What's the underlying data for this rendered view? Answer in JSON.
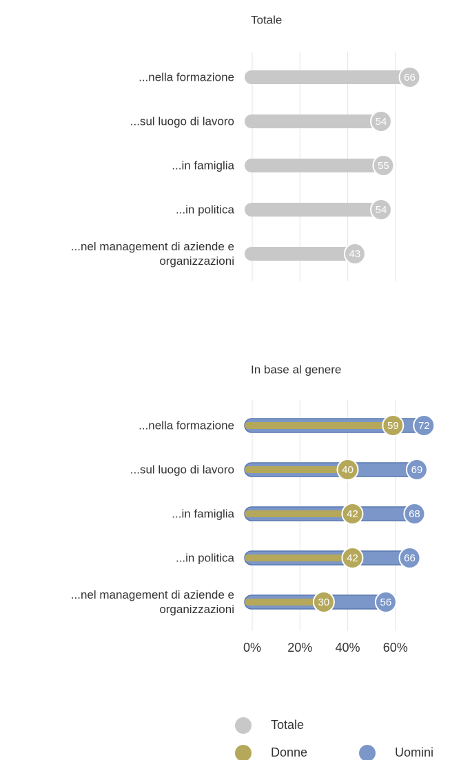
{
  "chart_data": [
    {
      "type": "bar",
      "title": "Totale",
      "categories": [
        "...nella formazione",
        "...sul luogo di lavoro",
        "...in famiglia",
        "...in politica",
        "...nel management di aziende e organizzazioni"
      ],
      "series": [
        {
          "name": "Totale",
          "color": "#c8c8c8",
          "values": [
            66,
            54,
            55,
            54,
            43
          ]
        }
      ],
      "xlim": [
        0,
        80
      ],
      "grid": true
    },
    {
      "type": "bar",
      "title": "In base al genere",
      "categories": [
        "...nella formazione",
        "...sul luogo di lavoro",
        "...in famiglia",
        "...in politica",
        "...nel management di aziende e organizzazioni"
      ],
      "series": [
        {
          "name": "Donne",
          "color": "#b5a85a",
          "values": [
            59,
            40,
            42,
            42,
            30
          ]
        },
        {
          "name": "Uomini",
          "color": "#7b96c8",
          "values": [
            72,
            69,
            68,
            66,
            56
          ]
        }
      ],
      "xlim": [
        0,
        80
      ],
      "xticks": [
        {
          "value": 0,
          "label": "0%"
        },
        {
          "value": 20,
          "label": "20%"
        },
        {
          "value": 40,
          "label": "40%"
        },
        {
          "value": 60,
          "label": "60%"
        }
      ],
      "grid": true
    }
  ]
}
